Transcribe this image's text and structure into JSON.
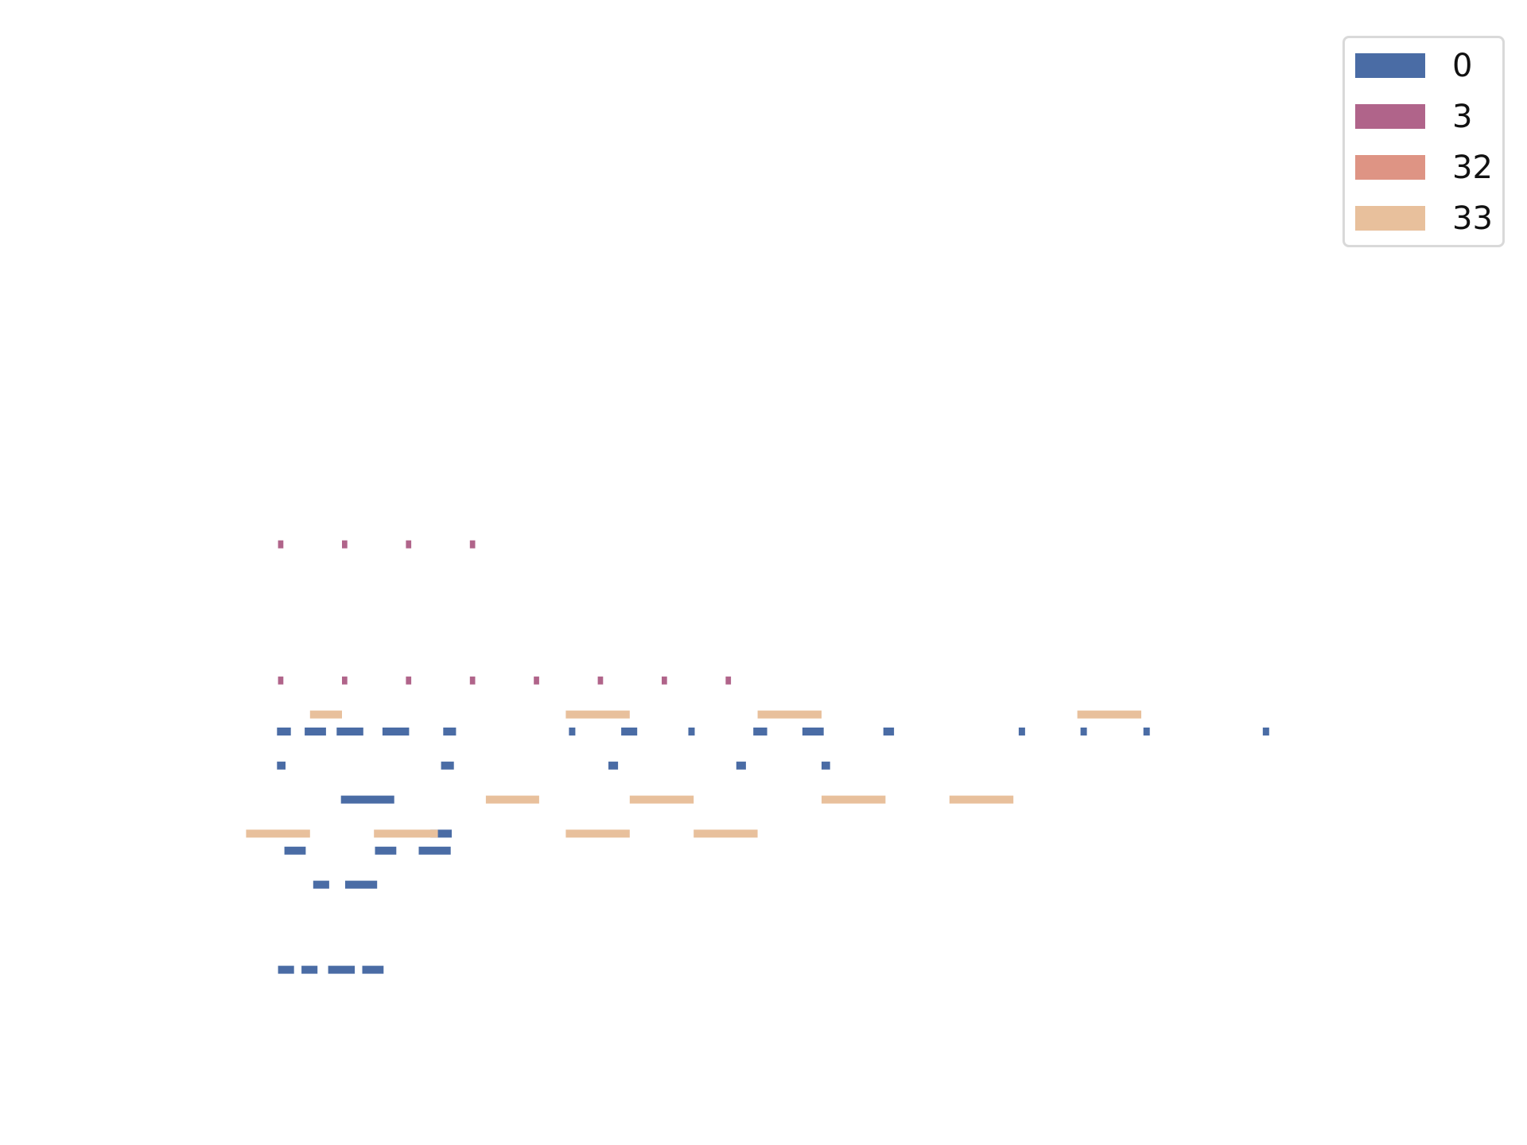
{
  "chart_data": {
    "type": "piano-roll",
    "title": "",
    "xlabel": "",
    "ylabel": "",
    "axes_visible": false,
    "grid": false,
    "legend_position": "top-right",
    "series": [
      {
        "name": "0",
        "color": "#4a6ca5",
        "notes": [
          [
            4.0,
            1.5,
            54
          ],
          [
            6.2,
            1.5,
            54
          ],
          [
            8.7,
            2.5,
            54
          ],
          [
            11.9,
            2.0,
            54
          ],
          [
            7.3,
            1.5,
            59
          ],
          [
            10.3,
            3.0,
            59
          ],
          [
            4.6,
            2.0,
            61
          ],
          [
            13.1,
            2.0,
            61
          ],
          [
            17.2,
            3.0,
            61
          ],
          [
            18.3,
            2.0,
            62
          ],
          [
            9.9,
            5.0,
            64
          ],
          [
            3.9,
            0.8,
            66
          ],
          [
            19.3,
            1.2,
            66
          ],
          [
            35.0,
            0.9,
            66
          ],
          [
            47.0,
            0.9,
            66
          ],
          [
            55.0,
            0.8,
            66
          ],
          [
            3.9,
            1.3,
            68
          ],
          [
            6.5,
            2.0,
            68
          ],
          [
            9.5,
            2.5,
            68
          ],
          [
            13.8,
            2.5,
            68
          ],
          [
            19.5,
            1.2,
            68
          ],
          [
            31.3,
            0.6,
            68
          ],
          [
            36.2,
            1.5,
            68
          ],
          [
            42.5,
            0.6,
            68
          ],
          [
            48.6,
            1.3,
            68
          ],
          [
            53.2,
            2.0,
            68
          ],
          [
            60.8,
            1.0,
            68
          ],
          [
            73.5,
            0.6,
            68
          ],
          [
            79.3,
            0.6,
            68
          ],
          [
            85.2,
            0.6,
            68
          ],
          [
            96.4,
            0.6,
            68
          ]
        ]
      },
      {
        "name": "3",
        "color": "#b0648a",
        "notes": [
          [
            4.0,
            0.5,
            71
          ],
          [
            10.0,
            0.5,
            71
          ],
          [
            16.0,
            0.5,
            71
          ],
          [
            22.0,
            0.5,
            71
          ],
          [
            28.0,
            0.5,
            71
          ],
          [
            34.0,
            0.5,
            71
          ],
          [
            40.0,
            0.5,
            71
          ],
          [
            46.0,
            0.5,
            71
          ],
          [
            4.0,
            0.5,
            79
          ],
          [
            10.0,
            0.5,
            79
          ],
          [
            16.0,
            0.5,
            79
          ],
          [
            22.0,
            0.5,
            79
          ]
        ]
      },
      {
        "name": "32",
        "color": "#de9484",
        "notes": []
      },
      {
        "name": "33",
        "color": "#e8c09c",
        "notes": [
          [
            1.0,
            6.0,
            62
          ],
          [
            13.0,
            6.0,
            62
          ],
          [
            31.0,
            6.0,
            62
          ],
          [
            43.0,
            6.0,
            62
          ],
          [
            23.5,
            5.0,
            64
          ],
          [
            37.0,
            6.0,
            64
          ],
          [
            55.0,
            6.0,
            64
          ],
          [
            67.0,
            6.0,
            64
          ],
          [
            7.0,
            3.0,
            69
          ],
          [
            31.0,
            6.0,
            69
          ],
          [
            49.0,
            6.0,
            69
          ],
          [
            79.0,
            6.0,
            69
          ]
        ]
      }
    ]
  },
  "legend": {
    "items": [
      {
        "label": "0",
        "color": "#4a6ca5"
      },
      {
        "label": "3",
        "color": "#b0648a"
      },
      {
        "label": "32",
        "color": "#de9484"
      },
      {
        "label": "33",
        "color": "#e8c09c"
      }
    ]
  }
}
